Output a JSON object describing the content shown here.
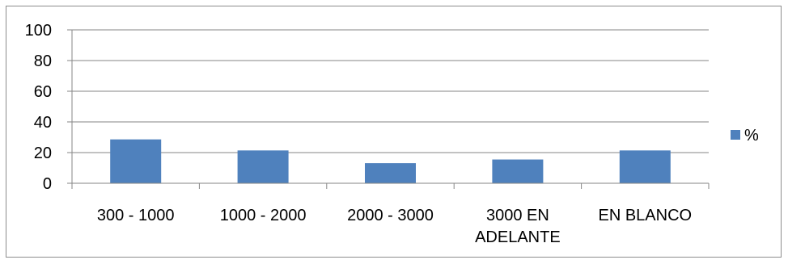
{
  "chart_data": {
    "type": "bar",
    "categories": [
      [
        "300 - 1000"
      ],
      [
        "1000 - 2000"
      ],
      [
        "2000 - 3000"
      ],
      [
        "3000 EN",
        "ADELANTE"
      ],
      [
        "EN BLANCO"
      ]
    ],
    "series": [
      {
        "name": "%",
        "color": "#4f81bd",
        "values": [
          28.6,
          21.4,
          13.1,
          15.5,
          21.4
        ]
      }
    ],
    "ylim": [
      0,
      100
    ],
    "yticks": [
      0,
      20,
      40,
      60,
      80,
      100
    ],
    "grid": true,
    "legend_position": "right",
    "title": "",
    "xlabel": "",
    "ylabel": ""
  }
}
